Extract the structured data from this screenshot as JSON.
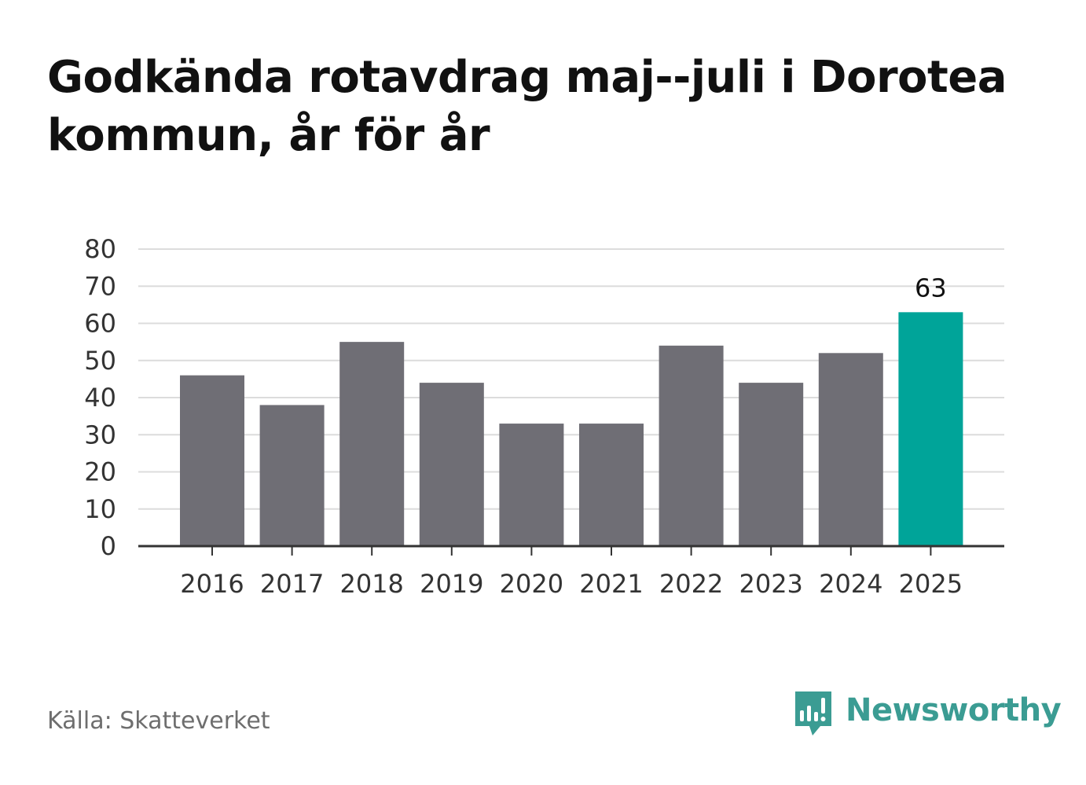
{
  "chart_data": {
    "type": "bar",
    "title": "Godkända rotavdrag maj--juli i Dorotea kommun, år för år",
    "categories": [
      "2016",
      "2017",
      "2018",
      "2019",
      "2020",
      "2021",
      "2022",
      "2023",
      "2024",
      "2025"
    ],
    "values": [
      46,
      38,
      55,
      44,
      33,
      33,
      54,
      44,
      52,
      63
    ],
    "ylim": [
      0,
      80
    ],
    "yticks": [
      0,
      10,
      20,
      30,
      40,
      50,
      60,
      70,
      80
    ],
    "xlabel": "",
    "ylabel": "",
    "grid": true,
    "bar_color": "#6f6e75",
    "highlight_color": "#00a499",
    "highlight_index": 9,
    "data_labels": [
      {
        "index": 9,
        "text": "63"
      }
    ]
  },
  "footer": {
    "source": "Källa: Skatteverket",
    "brand": "Newsworthy",
    "brand_color": "#3b9c93",
    "brand_icon": "speech-bubble-bar-chart-icon"
  }
}
